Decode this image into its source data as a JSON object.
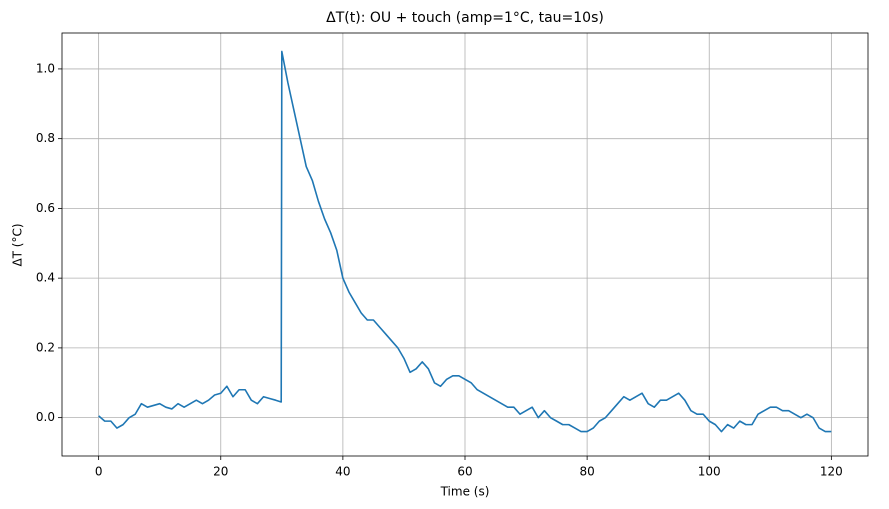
{
  "chart_data": {
    "type": "line",
    "title": "ΔT(t): OU + touch (amp=1°C, tau=10s)",
    "x_label": "Time (s)",
    "y_label": "ΔT (°C)",
    "x": [
      0,
      1,
      2,
      3,
      4,
      5,
      6,
      7,
      8,
      9,
      10,
      11,
      12,
      13,
      14,
      15,
      16,
      17,
      18,
      19,
      20,
      21,
      22,
      23,
      24,
      25,
      26,
      27,
      28,
      29,
      29.9,
      30,
      31,
      32,
      33,
      34,
      35,
      36,
      37,
      38,
      39,
      40,
      41,
      42,
      43,
      44,
      45,
      46,
      47,
      48,
      49,
      50,
      51,
      52,
      53,
      54,
      55,
      56,
      57,
      58,
      59,
      60,
      61,
      62,
      63,
      64,
      65,
      66,
      67,
      68,
      69,
      70,
      71,
      72,
      73,
      74,
      75,
      76,
      77,
      78,
      79,
      80,
      81,
      82,
      83,
      84,
      85,
      86,
      87,
      88,
      89,
      90,
      91,
      92,
      93,
      94,
      95,
      96,
      97,
      98,
      99,
      100,
      101,
      102,
      103,
      104,
      105,
      106,
      107,
      108,
      109,
      110,
      111,
      112,
      113,
      114,
      115,
      116,
      117,
      118,
      119,
      120
    ],
    "series": [
      {
        "name": "ΔT",
        "color": "#1f77b4",
        "values": [
          0.005,
          -0.01,
          -0.01,
          -0.03,
          -0.02,
          0.0,
          0.01,
          0.04,
          0.03,
          0.035,
          0.04,
          0.03,
          0.025,
          0.04,
          0.03,
          0.04,
          0.05,
          0.04,
          0.05,
          0.065,
          0.07,
          0.09,
          0.06,
          0.08,
          0.08,
          0.05,
          0.04,
          0.06,
          0.055,
          0.05,
          0.045,
          1.05,
          0.96,
          0.88,
          0.8,
          0.72,
          0.68,
          0.62,
          0.57,
          0.53,
          0.48,
          0.4,
          0.36,
          0.33,
          0.3,
          0.28,
          0.28,
          0.26,
          0.24,
          0.22,
          0.2,
          0.17,
          0.13,
          0.14,
          0.16,
          0.14,
          0.1,
          0.09,
          0.11,
          0.12,
          0.12,
          0.11,
          0.1,
          0.08,
          0.07,
          0.06,
          0.05,
          0.04,
          0.03,
          0.03,
          0.01,
          0.02,
          0.03,
          0.0,
          0.02,
          0.0,
          -0.01,
          -0.02,
          -0.02,
          -0.03,
          -0.04,
          -0.04,
          -0.03,
          -0.01,
          0.0,
          0.02,
          0.04,
          0.06,
          0.05,
          0.06,
          0.07,
          0.04,
          0.03,
          0.05,
          0.05,
          0.06,
          0.07,
          0.05,
          0.02,
          0.01,
          0.01,
          -0.01,
          -0.02,
          -0.04,
          -0.02,
          -0.03,
          -0.01,
          -0.02,
          -0.02,
          0.01,
          0.02,
          0.03,
          0.03,
          0.02,
          0.02,
          0.01,
          0.0,
          0.01,
          0.0,
          -0.03,
          -0.04,
          -0.04
        ]
      }
    ],
    "xlim": [
      -6,
      126
    ],
    "xticks": [
      0,
      20,
      40,
      60,
      80,
      100,
      120
    ],
    "ylim": [
      -0.11,
      1.103
    ],
    "yticks": [
      {
        "value": 0,
        "label": "0.0"
      },
      {
        "value": 0.2,
        "label": "0.2"
      },
      {
        "value": 0.4,
        "label": "0.4"
      },
      {
        "value": 0.6,
        "label": "0.6"
      },
      {
        "value": 0.8,
        "label": "0.8"
      },
      {
        "value": 1.0,
        "label": "1.0"
      }
    ],
    "grid": true
  }
}
